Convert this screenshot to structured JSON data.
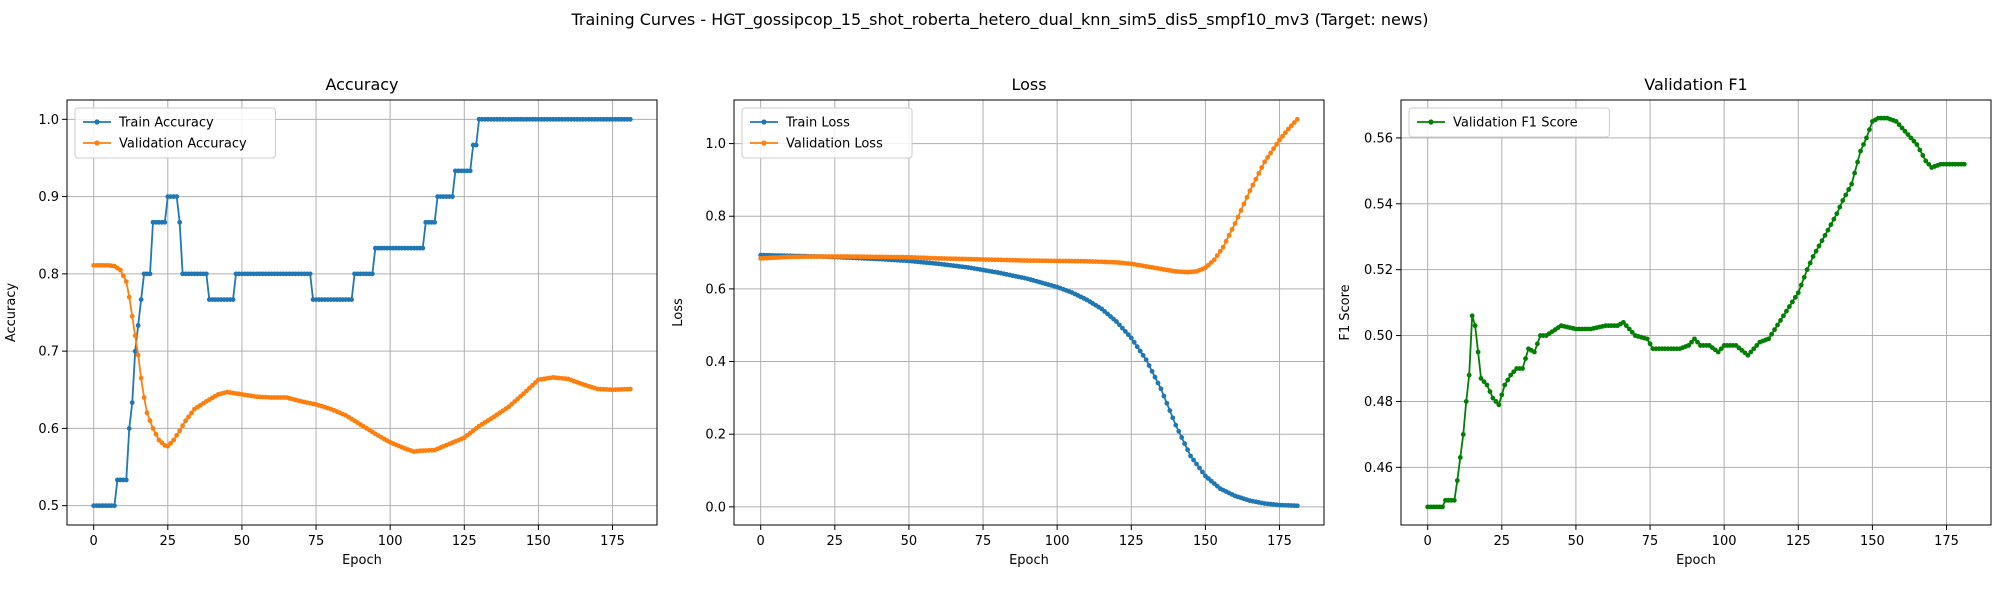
{
  "figure": {
    "title": "Training Curves - HGT_gossipcop_15_shot_roberta_hetero_dual_knn_sim5_dis5_smpf10_mv3 (Target: news)"
  },
  "chart_data": [
    {
      "type": "line",
      "title": "Accuracy",
      "xlabel": "Epoch",
      "ylabel": "Accuracy",
      "xlim": [
        -9,
        190
      ],
      "ylim": [
        0.475,
        1.025
      ],
      "xticks": [
        0,
        25,
        50,
        75,
        100,
        125,
        150,
        175
      ],
      "yticks": [
        0.5,
        0.6,
        0.7,
        0.8,
        0.9,
        1.0
      ],
      "ytick_labels": [
        "0.5",
        "0.6",
        "0.7",
        "0.8",
        "0.9",
        "1.0"
      ],
      "grid": true,
      "legend_position": "top-left",
      "series": [
        {
          "name": "Train Accuracy",
          "color": "#1f77b4",
          "keypoints": [
            [
              0,
              0.5
            ],
            [
              7,
              0.5
            ],
            [
              8,
              0.5333
            ],
            [
              11,
              0.5333
            ],
            [
              12,
              0.6
            ],
            [
              13,
              0.6333
            ],
            [
              14,
              0.7
            ],
            [
              15,
              0.7333
            ],
            [
              16,
              0.7667
            ],
            [
              17,
              0.8
            ],
            [
              19,
              0.8
            ],
            [
              20,
              0.8667
            ],
            [
              24,
              0.8667
            ],
            [
              25,
              0.9
            ],
            [
              28,
              0.9
            ],
            [
              29,
              0.8667
            ],
            [
              30,
              0.8
            ],
            [
              38,
              0.8
            ],
            [
              39,
              0.7667
            ],
            [
              47,
              0.7667
            ],
            [
              48,
              0.8
            ],
            [
              73,
              0.8
            ],
            [
              74,
              0.7667
            ],
            [
              87,
              0.7667
            ],
            [
              88,
              0.8
            ],
            [
              94,
              0.8
            ],
            [
              95,
              0.8333
            ],
            [
              111,
              0.8333
            ],
            [
              112,
              0.8667
            ],
            [
              115,
              0.8667
            ],
            [
              116,
              0.9
            ],
            [
              121,
              0.9
            ],
            [
              122,
              0.9333
            ],
            [
              127,
              0.9333
            ],
            [
              128,
              0.9667
            ],
            [
              129,
              0.9667
            ],
            [
              130,
              1.0
            ],
            [
              181,
              1.0
            ]
          ]
        },
        {
          "name": "Validation Accuracy",
          "color": "#ff7f0e",
          "keypoints": [
            [
              0,
              0.811
            ],
            [
              5,
              0.811
            ],
            [
              7,
              0.81
            ],
            [
              9,
              0.805
            ],
            [
              11,
              0.79
            ],
            [
              12,
              0.77
            ],
            [
              13,
              0.745
            ],
            [
              14,
              0.72
            ],
            [
              15,
              0.695
            ],
            [
              16,
              0.665
            ],
            [
              17,
              0.64
            ],
            [
              18,
              0.62
            ],
            [
              20,
              0.6
            ],
            [
              22,
              0.585
            ],
            [
              24,
              0.578
            ],
            [
              25,
              0.577
            ],
            [
              27,
              0.585
            ],
            [
              29,
              0.597
            ],
            [
              31,
              0.61
            ],
            [
              34,
              0.625
            ],
            [
              38,
              0.635
            ],
            [
              42,
              0.644
            ],
            [
              45,
              0.647
            ],
            [
              50,
              0.644
            ],
            [
              55,
              0.641
            ],
            [
              60,
              0.64
            ],
            [
              65,
              0.64
            ],
            [
              70,
              0.635
            ],
            [
              75,
              0.631
            ],
            [
              80,
              0.625
            ],
            [
              85,
              0.617
            ],
            [
              90,
              0.605
            ],
            [
              95,
              0.593
            ],
            [
              100,
              0.582
            ],
            [
              105,
              0.574
            ],
            [
              108,
              0.57
            ],
            [
              110,
              0.571
            ],
            [
              115,
              0.572
            ],
            [
              120,
              0.58
            ],
            [
              125,
              0.588
            ],
            [
              130,
              0.603
            ],
            [
              135,
              0.615
            ],
            [
              140,
              0.628
            ],
            [
              145,
              0.645
            ],
            [
              150,
              0.663
            ],
            [
              155,
              0.666
            ],
            [
              160,
              0.664
            ],
            [
              165,
              0.657
            ],
            [
              170,
              0.651
            ],
            [
              175,
              0.65
            ],
            [
              181,
              0.651
            ]
          ]
        }
      ]
    },
    {
      "type": "line",
      "title": "Loss",
      "xlabel": "Epoch",
      "ylabel": "Loss",
      "xlim": [
        -9,
        190
      ],
      "ylim": [
        -0.05,
        1.12
      ],
      "xticks": [
        0,
        25,
        50,
        75,
        100,
        125,
        150,
        175
      ],
      "yticks": [
        0.0,
        0.2,
        0.4,
        0.6,
        0.8,
        1.0
      ],
      "ytick_labels": [
        "0.0",
        "0.2",
        "0.4",
        "0.6",
        "0.8",
        "1.0"
      ],
      "grid": true,
      "legend_position": "top-left",
      "series": [
        {
          "name": "Train Loss",
          "color": "#1f77b4",
          "keypoints": [
            [
              0,
              0.693
            ],
            [
              10,
              0.691
            ],
            [
              20,
              0.689
            ],
            [
              30,
              0.686
            ],
            [
              40,
              0.682
            ],
            [
              50,
              0.677
            ],
            [
              60,
              0.669
            ],
            [
              70,
              0.659
            ],
            [
              80,
              0.645
            ],
            [
              90,
              0.628
            ],
            [
              100,
              0.605
            ],
            [
              105,
              0.59
            ],
            [
              110,
              0.57
            ],
            [
              115,
              0.545
            ],
            [
              120,
              0.51
            ],
            [
              125,
              0.465
            ],
            [
              130,
              0.405
            ],
            [
              135,
              0.325
            ],
            [
              140,
              0.225
            ],
            [
              145,
              0.14
            ],
            [
              150,
              0.085
            ],
            [
              155,
              0.05
            ],
            [
              160,
              0.03
            ],
            [
              165,
              0.017
            ],
            [
              170,
              0.009
            ],
            [
              175,
              0.005
            ],
            [
              181,
              0.003
            ]
          ]
        },
        {
          "name": "Validation Loss",
          "color": "#ff7f0e",
          "keypoints": [
            [
              0,
              0.684
            ],
            [
              5,
              0.686
            ],
            [
              10,
              0.688
            ],
            [
              20,
              0.689
            ],
            [
              30,
              0.689
            ],
            [
              40,
              0.688
            ],
            [
              50,
              0.687
            ],
            [
              60,
              0.684
            ],
            [
              70,
              0.682
            ],
            [
              80,
              0.68
            ],
            [
              90,
              0.678
            ],
            [
              100,
              0.677
            ],
            [
              110,
              0.676
            ],
            [
              120,
              0.673
            ],
            [
              125,
              0.669
            ],
            [
              130,
              0.662
            ],
            [
              135,
              0.655
            ],
            [
              140,
              0.648
            ],
            [
              144,
              0.646
            ],
            [
              147,
              0.648
            ],
            [
              150,
              0.658
            ],
            [
              153,
              0.68
            ],
            [
              156,
              0.715
            ],
            [
              160,
              0.78
            ],
            [
              165,
              0.87
            ],
            [
              170,
              0.95
            ],
            [
              175,
              1.01
            ],
            [
              178,
              1.04
            ],
            [
              181,
              1.067
            ]
          ]
        }
      ]
    },
    {
      "type": "line",
      "title": "Validation F1",
      "xlabel": "Epoch",
      "ylabel": "F1 Score",
      "xlim": [
        -9,
        190
      ],
      "ylim": [
        0.4425,
        0.5715
      ],
      "xticks": [
        0,
        25,
        50,
        75,
        100,
        125,
        150,
        175
      ],
      "yticks": [
        0.46,
        0.48,
        0.5,
        0.52,
        0.54,
        0.56
      ],
      "ytick_labels": [
        "0.46",
        "0.48",
        "0.50",
        "0.52",
        "0.54",
        "0.56"
      ],
      "grid": true,
      "legend_position": "top-left",
      "series": [
        {
          "name": "Validation F1 Score",
          "color": "#008000",
          "keypoints": [
            [
              0,
              0.448
            ],
            [
              5,
              0.448
            ],
            [
              6,
              0.45
            ],
            [
              9,
              0.45
            ],
            [
              10,
              0.456
            ],
            [
              11,
              0.463
            ],
            [
              12,
              0.47
            ],
            [
              13,
              0.48
            ],
            [
              14,
              0.488
            ],
            [
              15,
              0.506
            ],
            [
              16,
              0.503
            ],
            [
              17,
              0.495
            ],
            [
              18,
              0.487
            ],
            [
              20,
              0.485
            ],
            [
              22,
              0.481
            ],
            [
              24,
              0.479
            ],
            [
              26,
              0.485
            ],
            [
              28,
              0.488
            ],
            [
              30,
              0.49
            ],
            [
              32,
              0.49
            ],
            [
              34,
              0.496
            ],
            [
              36,
              0.495
            ],
            [
              38,
              0.5
            ],
            [
              40,
              0.5
            ],
            [
              45,
              0.503
            ],
            [
              50,
              0.502
            ],
            [
              55,
              0.502
            ],
            [
              60,
              0.503
            ],
            [
              64,
              0.503
            ],
            [
              66,
              0.504
            ],
            [
              70,
              0.5
            ],
            [
              74,
              0.499
            ],
            [
              76,
              0.496
            ],
            [
              80,
              0.496
            ],
            [
              85,
              0.496
            ],
            [
              88,
              0.497
            ],
            [
              90,
              0.499
            ],
            [
              92,
              0.497
            ],
            [
              95,
              0.497
            ],
            [
              98,
              0.495
            ],
            [
              100,
              0.497
            ],
            [
              104,
              0.497
            ],
            [
              108,
              0.494
            ],
            [
              112,
              0.498
            ],
            [
              115,
              0.499
            ],
            [
              120,
              0.506
            ],
            [
              125,
              0.513
            ],
            [
              128,
              0.52
            ],
            [
              130,
              0.524
            ],
            [
              135,
              0.532
            ],
            [
              138,
              0.537
            ],
            [
              140,
              0.541
            ],
            [
              143,
              0.546
            ],
            [
              146,
              0.556
            ],
            [
              148,
              0.56
            ],
            [
              150,
              0.565
            ],
            [
              152,
              0.566
            ],
            [
              155,
              0.566
            ],
            [
              158,
              0.565
            ],
            [
              162,
              0.561
            ],
            [
              165,
              0.558
            ],
            [
              168,
              0.553
            ],
            [
              170,
              0.551
            ],
            [
              173,
              0.552
            ],
            [
              175,
              0.552
            ],
            [
              181,
              0.552
            ]
          ]
        }
      ]
    }
  ]
}
